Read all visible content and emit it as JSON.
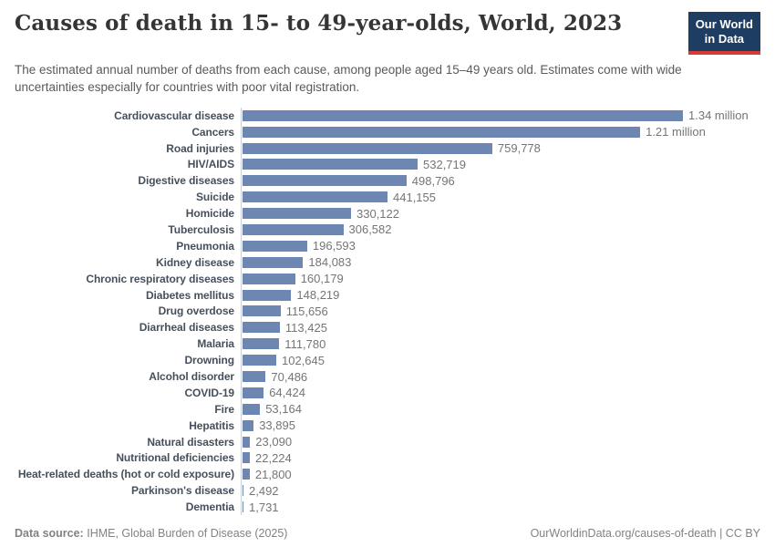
{
  "header": {
    "title": "Causes of death in 15- to 49-year-olds, World, 2023",
    "subtitle": "The estimated annual number of deaths from each cause, among people aged 15–49 years old. Estimates come with wide uncertainties especially for countries with poor vital registration.",
    "logo": {
      "line1": "Our World",
      "line2": "in Data"
    }
  },
  "chart_data": {
    "type": "bar",
    "orientation": "horizontal",
    "title": "Causes of death in 15- to 49-year-olds, World, 2023",
    "entity": "World",
    "year": "2023",
    "unit": "deaths",
    "xlim": [
      0,
      1340000
    ],
    "grid": false,
    "legend": "none",
    "max_value": 1340000,
    "categories": [
      "Cardiovascular disease",
      "Cancers",
      "Road injuries",
      "HIV/AIDS",
      "Digestive diseases",
      "Suicide",
      "Homicide",
      "Tuberculosis",
      "Pneumonia",
      "Kidney disease",
      "Chronic respiratory diseases",
      "Diabetes mellitus",
      "Drug overdose",
      "Diarrheal diseases",
      "Malaria",
      "Drowning",
      "Alcohol disorder",
      "COVID-19",
      "Fire",
      "Hepatitis",
      "Natural disasters",
      "Nutritional deficiencies",
      "Heat-related deaths (hot or cold exposure)",
      "Parkinson's disease",
      "Dementia"
    ],
    "values": [
      1340000,
      1210000,
      759778,
      532719,
      498796,
      441155,
      330122,
      306582,
      196593,
      184083,
      160179,
      148219,
      115656,
      113425,
      111780,
      102645,
      70486,
      64424,
      53164,
      33895,
      23090,
      22224,
      21800,
      2492,
      1731
    ],
    "value_labels": [
      "1.34 million",
      "1.21 million",
      "759,778",
      "532,719",
      "498,796",
      "441,155",
      "330,122",
      "306,582",
      "196,593",
      "184,083",
      "160,179",
      "148,219",
      "115,656",
      "113,425",
      "111,780",
      "102,645",
      "70,486",
      "64,424",
      "53,164",
      "33,895",
      "23,090",
      "22,224",
      "21,800",
      "2,492",
      "1,731"
    ]
  },
  "footer": {
    "source_label": "Data source:",
    "source_text": "IHME, Global Burden of Disease (2025)",
    "right_text": "OurWorldinData.org/causes-of-death | CC BY"
  },
  "colors": {
    "bar": "#6e87b2",
    "axis": "#ccd1d6",
    "logo_bg": "#1d3d63",
    "logo_accent": "#d73c34"
  }
}
